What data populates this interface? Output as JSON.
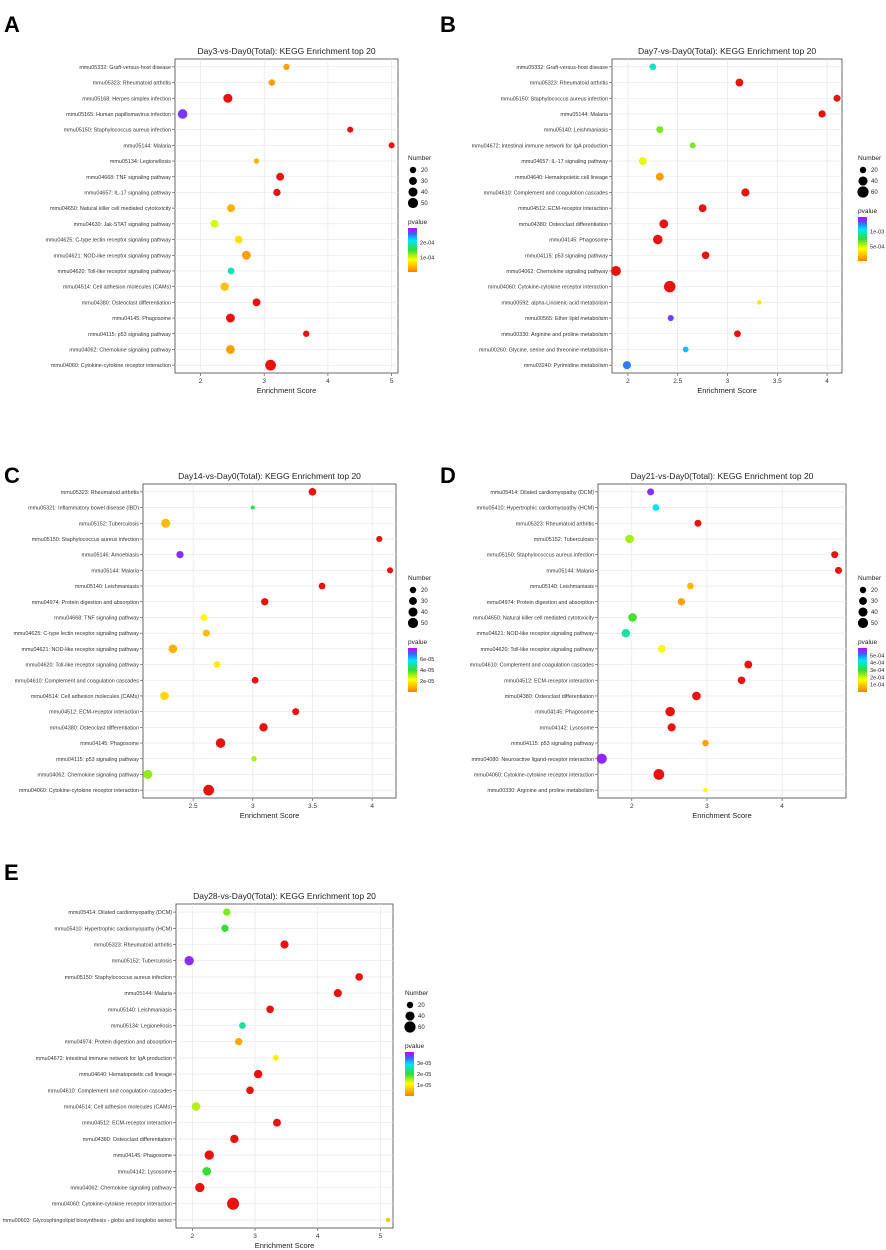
{
  "figure": {
    "colors": {
      "low": "#ff7f00",
      "mid": "#ffff00",
      "green": "#33dd33",
      "cyan": "#00e5ff",
      "blue": "#3366ff",
      "high": "#cc00ff",
      "strong": "#e8130f"
    }
  },
  "chart_data": [
    {
      "panel": "A",
      "type": "scatter",
      "title": "Day3-vs-Day0(Total): KEGG Enrichment top 20",
      "xlabel": "Enrichment Score",
      "xlim": [
        1.6,
        5.1
      ],
      "xticks": [
        2,
        3,
        4,
        5
      ],
      "size_legend": {
        "title": "Number",
        "values": [
          20,
          30,
          40,
          50
        ]
      },
      "color_legend": {
        "title": "pvalue",
        "labels": [
          "2e-04",
          "1e-04"
        ],
        "range": [
          0,
          0.00028
        ]
      },
      "points": [
        {
          "term": "mmu05332: Graft-versus-host disease",
          "x": 3.35,
          "size": 19,
          "p": 2e-05
        },
        {
          "term": "mmu05323: Rheumatoid arthritis",
          "x": 3.12,
          "size": 21,
          "p": 2e-05
        },
        {
          "term": "mmu05168: Herpes simplex infection",
          "x": 2.43,
          "size": 40,
          "p": 1e-05
        },
        {
          "term": "mmu05165: Human papillomavirus infection",
          "x": 1.72,
          "size": 44,
          "p": 0.00026
        },
        {
          "term": "mmu05150: Staphylococcus aureus infection",
          "x": 4.35,
          "size": 18,
          "p": 1e-05
        },
        {
          "term": "mmu05144: Malaria",
          "x": 5.0,
          "size": 18,
          "p": 1e-05
        },
        {
          "term": "mmu05134: Legionellosis",
          "x": 2.88,
          "size": 14,
          "p": 3e-05
        },
        {
          "term": "mmu04668: TNF signaling pathway",
          "x": 3.25,
          "size": 30,
          "p": 1e-05
        },
        {
          "term": "mmu04657: IL-17 signaling pathway",
          "x": 3.2,
          "size": 26,
          "p": 1e-05
        },
        {
          "term": "mmu04650: Natural killer cell mediated cytotoxicity",
          "x": 2.48,
          "size": 30,
          "p": 3e-05
        },
        {
          "term": "mmu04630: Jak-STAT signaling pathway",
          "x": 2.22,
          "size": 30,
          "p": 9e-05
        },
        {
          "term": "mmu04625: C-type lectin receptor signaling pathway",
          "x": 2.6,
          "size": 28,
          "p": 6e-05
        },
        {
          "term": "mmu04621: NOD-like receptor signaling pathway",
          "x": 2.72,
          "size": 38,
          "p": 2e-05
        },
        {
          "term": "mmu04620: Toll-like receptor signaling pathway",
          "x": 2.48,
          "size": 22,
          "p": 0.00018
        },
        {
          "term": "mmu04514: Cell adhesion molecules (CAMs)",
          "x": 2.38,
          "size": 34,
          "p": 4e-05
        },
        {
          "term": "mmu04380: Osteoclast differentiation",
          "x": 2.88,
          "size": 30,
          "p": 1e-05
        },
        {
          "term": "mmu04145: Phagosome",
          "x": 2.47,
          "size": 38,
          "p": 1e-05
        },
        {
          "term": "mmu04115: p53 signaling pathway",
          "x": 3.66,
          "size": 20,
          "p": 1e-05
        },
        {
          "term": "mmu04062: Chemokine signaling pathway",
          "x": 2.47,
          "size": 38,
          "p": 2e-05
        },
        {
          "term": "mmu04060: Cytokine-cytokine receptor interaction",
          "x": 3.1,
          "size": 56,
          "p": 1e-05
        }
      ]
    },
    {
      "panel": "B",
      "type": "scatter",
      "title": "Day7-vs-Day0(Total): KEGG Enrichment top 20",
      "xlabel": "Enrichment Score",
      "xlim": [
        1.84,
        4.15
      ],
      "xticks": [
        2.0,
        2.5,
        3.0,
        3.5,
        4.0
      ],
      "size_legend": {
        "title": "Number",
        "values": [
          20,
          40,
          60
        ]
      },
      "color_legend": {
        "title": "pvalue",
        "labels": [
          "1e-03",
          "5e-04"
        ],
        "range": [
          0,
          0.0013
        ]
      },
      "points": [
        {
          "term": "mmu05332: Graft-versus-host disease",
          "x": 2.25,
          "size": 22,
          "p": 0.00085
        },
        {
          "term": "mmu05323: Rheumatoid arthritis",
          "x": 3.12,
          "size": 30,
          "p": 2e-05
        },
        {
          "term": "mmu05150: Staphylococcus aureus infection",
          "x": 4.1,
          "size": 24,
          "p": 2e-05
        },
        {
          "term": "mmu05144: Malaria",
          "x": 3.95,
          "size": 26,
          "p": 2e-05
        },
        {
          "term": "mmu05140: Leishmaniasis",
          "x": 2.32,
          "size": 24,
          "p": 0.00055
        },
        {
          "term": "mmu04672: Intestinal immune network for IgA production",
          "x": 2.65,
          "size": 18,
          "p": 0.00055
        },
        {
          "term": "mmu04657: IL-17 signaling pathway",
          "x": 2.15,
          "size": 30,
          "p": 0.0004
        },
        {
          "term": "mmu04640: Hematopoietic cell lineage",
          "x": 2.32,
          "size": 30,
          "p": 8e-05
        },
        {
          "term": "mmu04610: Complement and coagulation cascades",
          "x": 3.18,
          "size": 32,
          "p": 2e-05
        },
        {
          "term": "mmu04512: ECM-receptor interaction",
          "x": 2.75,
          "size": 30,
          "p": 2e-05
        },
        {
          "term": "mmu04380: Osteoclast differentiation",
          "x": 2.36,
          "size": 38,
          "p": 2e-05
        },
        {
          "term": "mmu04145: Phagosome",
          "x": 2.3,
          "size": 44,
          "p": 2e-05
        },
        {
          "term": "mmu04115: p53 signaling pathway",
          "x": 2.78,
          "size": 28,
          "p": 2e-05
        },
        {
          "term": "mmu04062: Chemokine signaling pathway",
          "x": 1.88,
          "size": 48,
          "p": 5e-05
        },
        {
          "term": "mmu04060: Cytokine-cytokine receptor interaction",
          "x": 2.42,
          "size": 64,
          "p": 2e-05
        },
        {
          "term": "mmu00592: alpha-Linolenic acid metabolism",
          "x": 3.32,
          "size": 10,
          "p": 0.0003
        },
        {
          "term": "mmu00565: Ether lipid metabolism",
          "x": 2.43,
          "size": 18,
          "p": 0.0012
        },
        {
          "term": "mmu00330: Arginine and proline metabolism",
          "x": 3.1,
          "size": 22,
          "p": 2e-05
        },
        {
          "term": "mmu00260: Glycine, serine and threonine metabolism",
          "x": 2.58,
          "size": 16,
          "p": 0.001
        },
        {
          "term": "mmu03240: Pyrimidine metabolism",
          "x": 1.99,
          "size": 32,
          "p": 0.0011
        }
      ]
    },
    {
      "panel": "C",
      "type": "scatter",
      "title": "Day14-vs-Day0(Total): KEGG Enrichment top 20",
      "xlabel": "Enrichment Score",
      "xlim": [
        2.08,
        4.2
      ],
      "xticks": [
        2.5,
        3.0,
        3.5,
        4.0
      ],
      "size_legend": {
        "title": "Number",
        "values": [
          20,
          30,
          40,
          50
        ]
      },
      "color_legend": {
        "title": "pvalue",
        "labels": [
          "6e-05",
          "4e-05",
          "2e-05"
        ],
        "range": [
          0,
          7.5e-05
        ]
      },
      "points": [
        {
          "term": "mmu05323: Rheumatoid arthritis",
          "x": 3.5,
          "size": 28,
          "p": 3e-06
        },
        {
          "term": "mmu05321: Inflammatory bowel disease (IBD)",
          "x": 3.0,
          "size": 8,
          "p": 4e-05
        },
        {
          "term": "mmu05152: Tuberculosis",
          "x": 2.27,
          "size": 40,
          "p": 1e-05
        },
        {
          "term": "mmu05150: Staphylococcus aureus infection",
          "x": 4.06,
          "size": 18,
          "p": 3e-06
        },
        {
          "term": "mmu05146: Amoebiasis",
          "x": 2.39,
          "size": 26,
          "p": 7e-05
        },
        {
          "term": "mmu05144: Malaria",
          "x": 4.15,
          "size": 18,
          "p": 3e-06
        },
        {
          "term": "mmu05140: Leishmaniasis",
          "x": 3.58,
          "size": 22,
          "p": 3e-06
        },
        {
          "term": "mmu04974: Protein digestion and absorption",
          "x": 3.1,
          "size": 26,
          "p": 3e-06
        },
        {
          "term": "mmu04668: TNF signaling pathway",
          "x": 2.59,
          "size": 22,
          "p": 2e-05
        },
        {
          "term": "mmu04625: C-type lectin receptor signaling pathway",
          "x": 2.61,
          "size": 24,
          "p": 1e-05
        },
        {
          "term": "mmu04621: NOD-like receptor signaling pathway",
          "x": 2.33,
          "size": 36,
          "p": 8e-06
        },
        {
          "term": "mmu04620: Toll-like receptor signaling pathway",
          "x": 2.7,
          "size": 22,
          "p": 1.8e-05
        },
        {
          "term": "mmu04610: Complement and coagulation cascades",
          "x": 3.02,
          "size": 22,
          "p": 3e-06
        },
        {
          "term": "mmu04514: Cell adhesion molecules (CAMs)",
          "x": 2.26,
          "size": 36,
          "p": 1.5e-05
        },
        {
          "term": "mmu04512: ECM-receptor interaction",
          "x": 3.36,
          "size": 24,
          "p": 3e-06
        },
        {
          "term": "mmu04380: Osteoclast differentiation",
          "x": 3.09,
          "size": 34,
          "p": 3e-06
        },
        {
          "term": "mmu04145: Phagosome",
          "x": 2.73,
          "size": 44,
          "p": 3e-06
        },
        {
          "term": "mmu04115: p53 signaling pathway",
          "x": 3.01,
          "size": 14,
          "p": 2.8e-05
        },
        {
          "term": "mmu04062: Chemokine signaling pathway",
          "x": 2.12,
          "size": 40,
          "p": 3e-05
        },
        {
          "term": "mmu04060: Cytokine-cytokine receptor interaction",
          "x": 2.63,
          "size": 56,
          "p": 3e-06
        }
      ]
    },
    {
      "panel": "D",
      "type": "scatter",
      "title": "Day21-vs-Day0(Total): KEGG Enrichment top 20",
      "xlabel": "Enrichment Score",
      "xlim": [
        1.55,
        4.85
      ],
      "xticks": [
        2,
        3,
        4
      ],
      "size_legend": {
        "title": "Number",
        "values": [
          20,
          30,
          40,
          50
        ]
      },
      "color_legend": {
        "title": "pvalue",
        "labels": [
          "5e-04",
          "4e-04",
          "3e-04",
          "2e-04",
          "1e-04"
        ],
        "range": [
          0,
          0.00058
        ]
      },
      "points": [
        {
          "term": "mmu05414: Dilated cardiomyopathy (DCM)",
          "x": 2.25,
          "size": 24,
          "p": 0.00054
        },
        {
          "term": "mmu05410: Hypertrophic cardiomyopathy (HCM)",
          "x": 2.32,
          "size": 22,
          "p": 0.00041
        },
        {
          "term": "mmu05323: Rheumatoid arthritis",
          "x": 2.88,
          "size": 24,
          "p": 1e-05
        },
        {
          "term": "mmu05152: Tuberculosis",
          "x": 1.97,
          "size": 36,
          "p": 0.00022
        },
        {
          "term": "mmu05150: Staphylococcus aureus infection",
          "x": 4.7,
          "size": 24,
          "p": 1e-05
        },
        {
          "term": "mmu05144: Malaria",
          "x": 4.75,
          "size": 24,
          "p": 1e-05
        },
        {
          "term": "mmu05140: Leishmaniasis",
          "x": 2.78,
          "size": 22,
          "p": 7e-05
        },
        {
          "term": "mmu04974: Protein digestion and absorption",
          "x": 2.66,
          "size": 26,
          "p": 4e-05
        },
        {
          "term": "mmu04650: Natural killer cell mediated cytotoxicity",
          "x": 2.01,
          "size": 36,
          "p": 0.00028
        },
        {
          "term": "mmu04621: NOD-like receptor signaling pathway",
          "x": 1.92,
          "size": 34,
          "p": 0.00036
        },
        {
          "term": "mmu04620: Toll-like receptor signaling pathway",
          "x": 2.4,
          "size": 28,
          "p": 0.00017
        },
        {
          "term": "mmu04610: Complement and coagulation cascades",
          "x": 3.55,
          "size": 30,
          "p": 1e-05
        },
        {
          "term": "mmu04512: ECM-receptor interaction",
          "x": 3.46,
          "size": 28,
          "p": 1e-05
        },
        {
          "term": "mmu04380: Osteoclast differentiation",
          "x": 2.86,
          "size": 36,
          "p": 1e-05
        },
        {
          "term": "mmu04145: Phagosome",
          "x": 2.51,
          "size": 44,
          "p": 1e-05
        },
        {
          "term": "mmu04142: Lysosome",
          "x": 2.53,
          "size": 32,
          "p": 1e-05
        },
        {
          "term": "mmu04115: p53 signaling pathway",
          "x": 2.98,
          "size": 20,
          "p": 4e-05
        },
        {
          "term": "mmu04080: Neuroactive ligand-receptor interaction",
          "x": 1.6,
          "size": 50,
          "p": 0.00055
        },
        {
          "term": "mmu04060: Cytokine-cytokine receptor interaction",
          "x": 2.36,
          "size": 56,
          "p": 1e-05
        },
        {
          "term": "mmu00330: Arginine and proline metabolism",
          "x": 2.98,
          "size": 10,
          "p": 0.00016
        }
      ]
    },
    {
      "panel": "E",
      "type": "scatter",
      "title": "Day28-vs-Day0(Total): KEGG Enrichment top 20",
      "xlabel": "Enrichment Score",
      "xlim": [
        1.74,
        5.2
      ],
      "xticks": [
        2,
        3,
        4,
        5
      ],
      "size_legend": {
        "title": "Number",
        "values": [
          20,
          40,
          60
        ]
      },
      "color_legend": {
        "title": "pvalue",
        "labels": [
          "3e-05",
          "2e-05",
          "1e-05"
        ],
        "range": [
          0,
          3.6e-05
        ]
      },
      "points": [
        {
          "term": "mmu05414: Dilated cardiomyopathy (DCM)",
          "x": 2.55,
          "size": 26,
          "p": 1.5e-05
        },
        {
          "term": "mmu05410: Hypertrophic cardiomyopathy (HCM)",
          "x": 2.52,
          "size": 26,
          "p": 1.8e-05
        },
        {
          "term": "mmu05323: Rheumatoid arthritis",
          "x": 3.47,
          "size": 32,
          "p": 5e-07
        },
        {
          "term": "mmu05152: Tuberculosis",
          "x": 1.95,
          "size": 42,
          "p": 3.4e-05
        },
        {
          "term": "mmu05150: Staphylococcus aureus infection",
          "x": 4.66,
          "size": 28,
          "p": 5e-07
        },
        {
          "term": "mmu05144: Malaria",
          "x": 4.32,
          "size": 32,
          "p": 5e-07
        },
        {
          "term": "mmu05140: Leishmaniasis",
          "x": 3.24,
          "size": 28,
          "p": 5e-07
        },
        {
          "term": "mmu05134: Legionellosis",
          "x": 2.8,
          "size": 22,
          "p": 2.2e-05
        },
        {
          "term": "mmu04974: Protein digestion and absorption",
          "x": 2.74,
          "size": 26,
          "p": 3e-06
        },
        {
          "term": "mmu04672: Intestinal immune network for IgA production",
          "x": 3.33,
          "size": 18,
          "p": 9e-06
        },
        {
          "term": "mmu04640: Hematopoietic cell lineage",
          "x": 3.05,
          "size": 34,
          "p": 5e-07
        },
        {
          "term": "mmu04610: Complement and coagulation cascades",
          "x": 2.92,
          "size": 28,
          "p": 5e-07
        },
        {
          "term": "mmu04514: Cell adhesion molecules (CAMs)",
          "x": 2.06,
          "size": 36,
          "p": 1.3e-05
        },
        {
          "term": "mmu04512: ECM-receptor interaction",
          "x": 3.35,
          "size": 30,
          "p": 5e-07
        },
        {
          "term": "mmu04380: Osteoclast differentiation",
          "x": 2.67,
          "size": 34,
          "p": 5e-07
        },
        {
          "term": "mmu04145: Phagosome",
          "x": 2.27,
          "size": 42,
          "p": 5e-07
        },
        {
          "term": "mmu04142: Lysosome",
          "x": 2.23,
          "size": 36,
          "p": 1.8e-05
        },
        {
          "term": "mmu04062: Chemokine signaling pathway",
          "x": 2.12,
          "size": 42,
          "p": 2e-06
        },
        {
          "term": "mmu04060: Cytokine-cytokine receptor interaction",
          "x": 2.65,
          "size": 70,
          "p": 5e-07
        },
        {
          "term": "mmu00603: Glycosphingolipid biosynthesis - globo and isoglobo series",
          "x": 5.12,
          "size": 8,
          "p": 5e-06
        }
      ]
    }
  ]
}
